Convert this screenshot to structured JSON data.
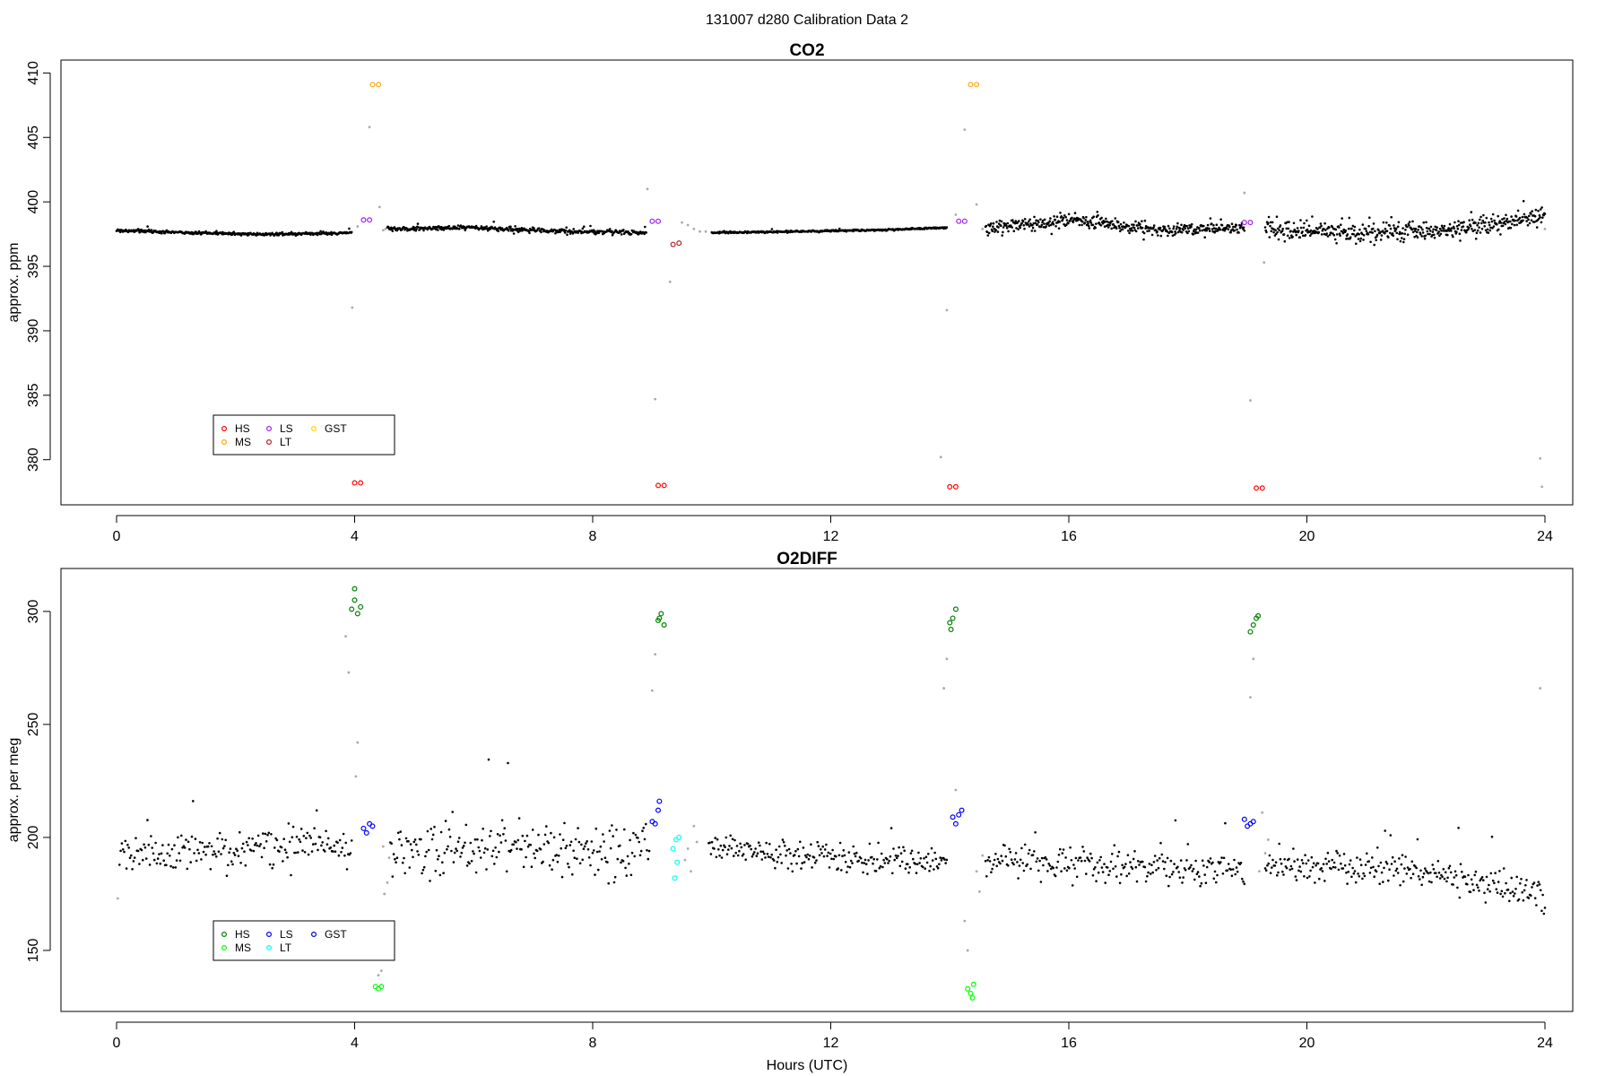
{
  "figure": {
    "title": "131007   d280   Calibration Data 2"
  },
  "chart_data": [
    {
      "type": "scatter",
      "title": "CO2",
      "xlabel": "",
      "ylabel": "approx. ppm",
      "xlim": [
        0,
        24
      ],
      "ylim": [
        376.5,
        411
      ],
      "xticks": [
        0,
        4,
        8,
        12,
        16,
        20,
        24
      ],
      "yticks": [
        380,
        385,
        390,
        395,
        400,
        405,
        410
      ],
      "grid": false,
      "legend": {
        "position": "bottom-left",
        "entries": [
          {
            "label": "HS",
            "color": "#ff0000"
          },
          {
            "label": "MS",
            "color": "#ffa500"
          },
          {
            "label": "LS",
            "color": "#a020f0"
          },
          {
            "label": "LT",
            "color": "#b22222"
          },
          {
            "label": "GST",
            "color": "#ffd700"
          }
        ]
      },
      "background": {
        "color": "#000000",
        "segments": [
          {
            "x0": 0.0,
            "x1": 3.95,
            "n": 380,
            "y": [
              397.8,
              397.6,
              397.5,
              397.6
            ],
            "noise": 0.08
          },
          {
            "x0": 4.55,
            "x1": 8.9,
            "n": 400,
            "y": [
              397.9,
              398.0,
              397.7,
              397.6
            ],
            "noise": 0.12
          },
          {
            "x0": 10.0,
            "x1": 13.95,
            "n": 380,
            "y": [
              397.6,
              397.7,
              397.8,
              398.0
            ],
            "noise": 0.05
          },
          {
            "x0": 14.6,
            "x1": 18.95,
            "n": 420,
            "y": [
              397.9,
              398.6,
              397.8,
              398.0
            ],
            "noise": 0.35
          },
          {
            "x0": 19.3,
            "x1": 24.0,
            "n": 460,
            "y": [
              398.0,
              397.6,
              397.8,
              398.9
            ],
            "noise": 0.5
          }
        ]
      },
      "transitions": {
        "color": "#aaaaaa",
        "points": [
          [
            3.96,
            391.8
          ],
          [
            4.05,
            398.1
          ],
          [
            4.42,
            399.6
          ],
          [
            4.48,
            397.8
          ],
          [
            4.52,
            397.9
          ],
          [
            4.25,
            405.8
          ],
          [
            8.92,
            401.0
          ],
          [
            9.3,
            393.8
          ],
          [
            9.5,
            398.4
          ],
          [
            9.6,
            398.2
          ],
          [
            9.7,
            397.9
          ],
          [
            9.8,
            397.7
          ],
          [
            9.9,
            397.7
          ],
          [
            13.95,
            391.6
          ],
          [
            14.1,
            399.0
          ],
          [
            14.45,
            399.8
          ],
          [
            14.55,
            397.9
          ],
          [
            14.25,
            405.6
          ],
          [
            13.85,
            380.2
          ],
          [
            18.95,
            400.7
          ],
          [
            19.05,
            384.6
          ],
          [
            19.28,
            395.3
          ],
          [
            23.92,
            380.1
          ],
          [
            23.95,
            377.9
          ],
          [
            24.0,
            397.9
          ],
          [
            9.05,
            384.7
          ]
        ]
      },
      "series": [
        {
          "name": "HS",
          "color": "#ff0000",
          "points": [
            [
              4.0,
              378.2
            ],
            [
              4.1,
              378.2
            ],
            [
              9.1,
              378.0
            ],
            [
              9.2,
              378.0
            ],
            [
              14.0,
              377.9
            ],
            [
              14.1,
              377.9
            ],
            [
              19.15,
              377.8
            ],
            [
              19.25,
              377.8
            ]
          ]
        },
        {
          "name": "MS",
          "color": "#ffa500",
          "points": [
            [
              4.3,
              409.1
            ],
            [
              4.4,
              409.1
            ],
            [
              14.35,
              409.1
            ],
            [
              14.45,
              409.1
            ]
          ]
        },
        {
          "name": "LS",
          "color": "#a020f0",
          "points": [
            [
              4.15,
              398.6
            ],
            [
              4.25,
              398.6
            ],
            [
              9.0,
              398.5
            ],
            [
              9.1,
              398.5
            ],
            [
              14.15,
              398.5
            ],
            [
              14.25,
              398.5
            ],
            [
              18.95,
              398.4
            ],
            [
              19.05,
              398.4
            ]
          ]
        },
        {
          "name": "LT",
          "color": "#b22222",
          "points": [
            [
              9.35,
              396.7
            ],
            [
              9.45,
              396.8
            ]
          ]
        }
      ]
    },
    {
      "type": "scatter",
      "title": "O2DIFF",
      "xlabel": "Hours (UTC)",
      "ylabel": "approx. per meg",
      "xlim": [
        0,
        24
      ],
      "ylim": [
        123,
        319
      ],
      "xticks": [
        0,
        4,
        8,
        12,
        16,
        20,
        24
      ],
      "yticks": [
        150,
        200,
        250,
        300
      ],
      "grid": false,
      "legend": {
        "position": "bottom-left",
        "entries": [
          {
            "label": "HS",
            "color": "#008000"
          },
          {
            "label": "MS",
            "color": "#00ff00"
          },
          {
            "label": "LS",
            "color": "#0000ff"
          },
          {
            "label": "LT",
            "color": "#00ffff"
          },
          {
            "label": "GST",
            "color": "#0000cd"
          }
        ]
      },
      "background": {
        "color": "#000000",
        "segments": [
          {
            "x0": 0.05,
            "x1": 3.95,
            "n": 200,
            "y": [
              193,
              195,
              196,
              193
            ],
            "noise": 6
          },
          {
            "x0": 4.6,
            "x1": 8.95,
            "n": 230,
            "y": [
              192,
              196,
              195,
              196
            ],
            "noise": 9
          },
          {
            "x0": 9.95,
            "x1": 13.95,
            "n": 220,
            "y": [
              197,
              193,
              190,
              189
            ],
            "noise": 4
          },
          {
            "x0": 14.6,
            "x1": 18.95,
            "n": 230,
            "y": [
              191,
              188,
              187,
              186
            ],
            "noise": 5
          },
          {
            "x0": 19.3,
            "x1": 24.0,
            "n": 260,
            "y": [
              188,
              187,
              182,
              175
            ],
            "noise": 5
          }
        ]
      },
      "transitions": {
        "color": "#aaaaaa",
        "points": [
          [
            0.02,
            173
          ],
          [
            3.85,
            289
          ],
          [
            3.9,
            273
          ],
          [
            4.05,
            242
          ],
          [
            4.02,
            227
          ],
          [
            4.45,
            141
          ],
          [
            4.4,
            139
          ],
          [
            4.5,
            175
          ],
          [
            4.55,
            180
          ],
          [
            4.58,
            191
          ],
          [
            4.48,
            196
          ],
          [
            9.05,
            281
          ],
          [
            9.0,
            265
          ],
          [
            9.55,
            190
          ],
          [
            9.6,
            195
          ],
          [
            9.7,
            205
          ],
          [
            9.65,
            185
          ],
          [
            9.75,
            198
          ],
          [
            13.95,
            279
          ],
          [
            13.9,
            266
          ],
          [
            14.1,
            221
          ],
          [
            14.25,
            163
          ],
          [
            14.3,
            150
          ],
          [
            14.5,
            176
          ],
          [
            14.55,
            192
          ],
          [
            14.45,
            185
          ],
          [
            19.1,
            279
          ],
          [
            19.05,
            262
          ],
          [
            19.25,
            211
          ],
          [
            19.3,
            193
          ],
          [
            19.35,
            199
          ],
          [
            19.2,
            185
          ],
          [
            23.92,
            266
          ]
        ]
      },
      "series": [
        {
          "name": "HS",
          "color": "#008000",
          "points": [
            [
              3.95,
              301
            ],
            [
              4.0,
              305
            ],
            [
              4.05,
              299
            ],
            [
              4.1,
              302
            ],
            [
              4.0,
              310
            ],
            [
              9.1,
              296
            ],
            [
              9.15,
              299
            ],
            [
              9.2,
              294
            ],
            [
              9.12,
              297
            ],
            [
              14.0,
              295
            ],
            [
              14.05,
              297
            ],
            [
              14.1,
              301
            ],
            [
              14.02,
              292
            ],
            [
              19.05,
              291
            ],
            [
              19.1,
              294
            ],
            [
              19.15,
              297
            ],
            [
              19.18,
              298
            ]
          ]
        },
        {
          "name": "MS",
          "color": "#00ff00",
          "points": [
            [
              4.35,
              134
            ],
            [
              4.4,
              133
            ],
            [
              4.45,
              134
            ],
            [
              14.3,
              133
            ],
            [
              14.35,
              131
            ],
            [
              14.4,
              135
            ],
            [
              14.38,
              129
            ]
          ]
        },
        {
          "name": "LS",
          "color": "#0000ff",
          "points": [
            [
              4.15,
              204
            ],
            [
              4.2,
              202
            ],
            [
              4.25,
              206
            ],
            [
              4.3,
              205
            ],
            [
              9.0,
              207
            ],
            [
              9.05,
              206
            ],
            [
              9.1,
              212
            ],
            [
              9.12,
              216
            ],
            [
              14.05,
              209
            ],
            [
              14.1,
              206
            ],
            [
              14.15,
              210
            ],
            [
              14.2,
              212
            ],
            [
              18.95,
              208
            ],
            [
              19.0,
              205
            ],
            [
              19.05,
              206
            ],
            [
              19.1,
              207
            ]
          ]
        },
        {
          "name": "LT",
          "color": "#00ffff",
          "points": [
            [
              9.35,
              195
            ],
            [
              9.4,
              199
            ],
            [
              9.45,
              200
            ],
            [
              9.38,
              182
            ],
            [
              9.42,
              189
            ]
          ]
        }
      ]
    }
  ]
}
